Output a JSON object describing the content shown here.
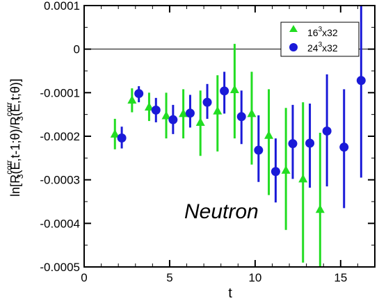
{
  "chart_data": {
    "type": "scatter",
    "title": "",
    "xlabel": "t",
    "ylabel": {
      "t1": "ln[R",
      "t2": "corr",
      "t3": "3",
      "t4": "(E,t-1;θ)/R",
      "t5": "corr",
      "t6": "3",
      "t7": "(E,t;θ)]"
    },
    "xlim": [
      0,
      17
    ],
    "ylim": [
      -0.0005,
      0.0001
    ],
    "xticks": [
      {
        "v": 0,
        "label": "0"
      },
      {
        "v": 5,
        "label": "5"
      },
      {
        "v": 10,
        "label": "10"
      },
      {
        "v": 15,
        "label": "15"
      }
    ],
    "yticks": [
      {
        "v": 0.0001,
        "label": "0.0001"
      },
      {
        "v": 0,
        "label": "0"
      },
      {
        "v": -0.0001,
        "label": "-0.0001"
      },
      {
        "v": -0.0002,
        "label": "-0.0002"
      },
      {
        "v": -0.0003,
        "label": "-0.0003"
      },
      {
        "v": -0.0004,
        "label": "-0.0004"
      },
      {
        "v": -0.0005,
        "label": "-0.0005"
      }
    ],
    "reference_line_y": 0,
    "annotation": "Neutron",
    "legend_position": "top-right",
    "series": [
      {
        "name": {
          "a": "16",
          "b": "3",
          "c": "x32"
        },
        "marker": "triangle",
        "color": "#22dd22",
        "points": [
          {
            "x": 1.8,
            "y": -0.000195,
            "lo": -0.00023,
            "hi": -0.00016
          },
          {
            "x": 2.8,
            "y": -0.000117,
            "lo": -0.000145,
            "hi": -9e-05
          },
          {
            "x": 3.8,
            "y": -0.000133,
            "lo": -0.000165,
            "hi": -0.0001
          },
          {
            "x": 4.8,
            "y": -0.000153,
            "lo": -0.000205,
            "hi": -0.0001
          },
          {
            "x": 5.8,
            "y": -0.000148,
            "lo": -0.000205,
            "hi": -9.2e-05
          },
          {
            "x": 6.8,
            "y": -0.000168,
            "lo": -0.000245,
            "hi": -9.5e-05
          },
          {
            "x": 7.8,
            "y": -0.000142,
            "lo": -0.000235,
            "hi": -6e-05
          },
          {
            "x": 8.8,
            "y": -9.3e-05,
            "lo": -0.000205,
            "hi": 1.2e-05
          },
          {
            "x": 9.8,
            "y": -0.000148,
            "lo": -0.000265,
            "hi": -5.2e-05
          },
          {
            "x": 10.8,
            "y": -0.000198,
            "lo": -0.000335,
            "hi": -9.2e-05
          },
          {
            "x": 11.8,
            "y": -0.000278,
            "lo": -0.000415,
            "hi": -0.000135
          },
          {
            "x": 12.8,
            "y": -0.000298,
            "lo": -0.00049,
            "hi": -0.000122
          },
          {
            "x": 13.8,
            "y": -0.000368,
            "lo": -0.0005,
            "hi": -0.000192
          }
        ]
      },
      {
        "name": {
          "a": "24",
          "b": "3",
          "c": "x32"
        },
        "marker": "circle",
        "color": "#1a1ad8",
        "points": [
          {
            "x": 2.2,
            "y": -0.000204,
            "lo": -0.000228,
            "hi": -0.000178
          },
          {
            "x": 3.2,
            "y": -0.000102,
            "lo": -0.000122,
            "hi": -8.5e-05
          },
          {
            "x": 4.2,
            "y": -0.00014,
            "lo": -0.000168,
            "hi": -0.000112
          },
          {
            "x": 5.2,
            "y": -0.000162,
            "lo": -0.000195,
            "hi": -0.000128
          },
          {
            "x": 6.2,
            "y": -0.000147,
            "lo": -0.00018,
            "hi": -0.000105
          },
          {
            "x": 7.2,
            "y": -0.000122,
            "lo": -0.00016,
            "hi": -8e-05
          },
          {
            "x": 8.2,
            "y": -9.6e-05,
            "lo": -0.000148,
            "hi": -5.2e-05
          },
          {
            "x": 9.2,
            "y": -0.000155,
            "lo": -0.000218,
            "hi": -9.5e-05
          },
          {
            "x": 10.2,
            "y": -0.000232,
            "lo": -0.000305,
            "hi": -0.000152
          },
          {
            "x": 11.2,
            "y": -0.000281,
            "lo": -0.000352,
            "hi": -0.000205
          },
          {
            "x": 12.2,
            "y": -0.000217,
            "lo": -0.000298,
            "hi": -0.000128
          },
          {
            "x": 13.2,
            "y": -0.000216,
            "lo": -0.000318,
            "hi": -0.000125
          },
          {
            "x": 14.2,
            "y": -0.000188,
            "lo": -0.000315,
            "hi": -5.8e-05
          },
          {
            "x": 15.2,
            "y": -0.000225,
            "lo": -0.000365,
            "hi": -9.2e-05
          },
          {
            "x": 16.2,
            "y": -7.2e-05,
            "lo": -0.000295,
            "hi": 0.0001
          }
        ]
      }
    ]
  }
}
